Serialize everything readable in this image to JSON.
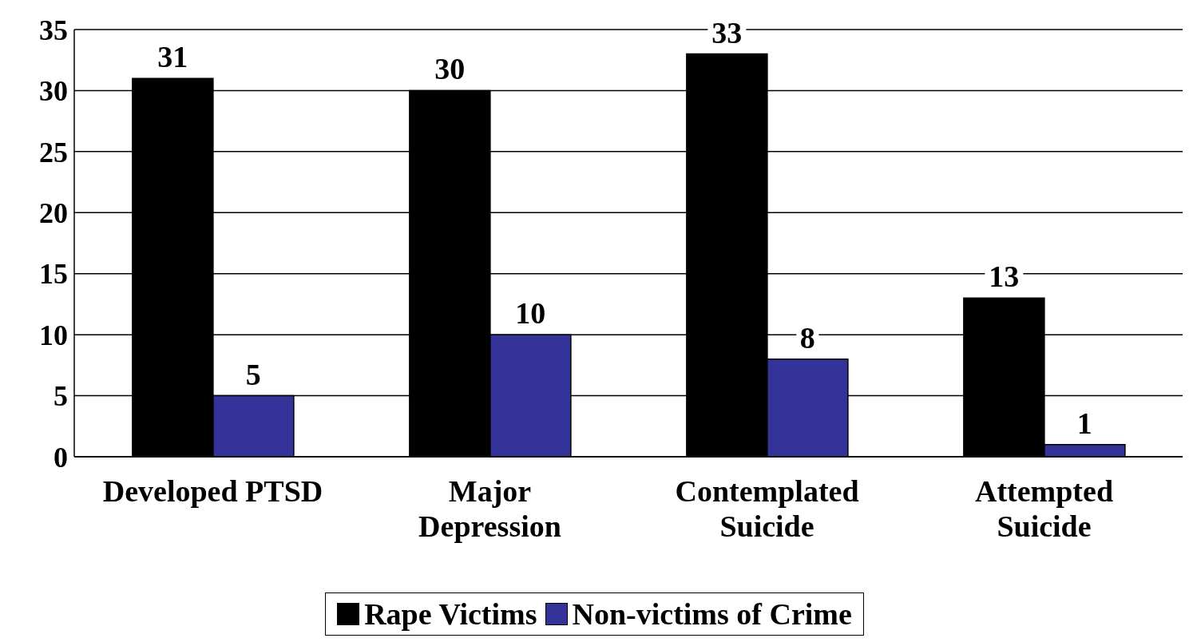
{
  "chart_data": {
    "type": "bar",
    "categories": [
      "Developed PTSD",
      "Major Depression",
      "Contemplated Suicide",
      "Attempted Suicide"
    ],
    "series": [
      {
        "name": "Rape Victims",
        "color": "#000000",
        "values": [
          31,
          30,
          33,
          13
        ]
      },
      {
        "name": "Non-victims of Crime",
        "color": "#333399",
        "values": [
          5,
          10,
          8,
          1
        ]
      }
    ],
    "ylim": [
      0,
      35
    ],
    "yticks": [
      0,
      5,
      10,
      15,
      20,
      25,
      30,
      35
    ],
    "grid": "y",
    "legend": "bottom",
    "data_labels": true
  }
}
